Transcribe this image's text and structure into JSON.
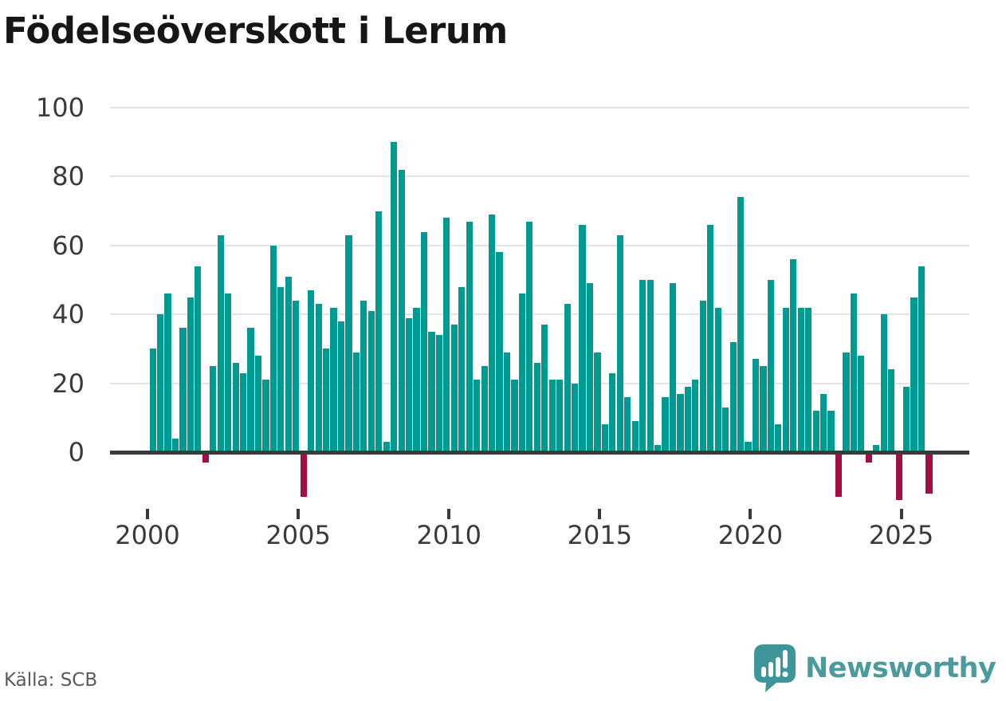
{
  "page": {
    "title": "Födelseöverskott i Lerum",
    "source": "Källa: SCB"
  },
  "logo": {
    "text": "Newsworthy",
    "icon": "newsworthy-speech-bubble-bar-chart-icon"
  },
  "colors": {
    "positive_bar": "#009a92",
    "negative_bar": "#a60d45",
    "axis": "#3a3a3a",
    "grid": "#e3e3e3",
    "title_text": "#161616",
    "tick_label": "#3a3a3a",
    "source_text": "#5a5a5a",
    "logo_teal": "#4a9a9e"
  },
  "chart_data": {
    "type": "bar",
    "title": "Födelseöverskott i Lerum",
    "xlabel": "",
    "ylabel": "",
    "yticks": [
      0,
      20,
      40,
      60,
      80,
      100
    ],
    "xticks": [
      2000,
      2005,
      2010,
      2015,
      2020,
      2025
    ],
    "ylim": [
      -16,
      100
    ],
    "grid": "horizontal",
    "legend": "none",
    "frequency": "quarterly",
    "years": [
      {
        "year": 2000,
        "quarters": [
          30,
          40,
          46,
          4
        ]
      },
      {
        "year": 2001,
        "quarters": [
          36,
          45,
          54,
          -3
        ]
      },
      {
        "year": 2002,
        "quarters": [
          25,
          63,
          46,
          26
        ]
      },
      {
        "year": 2003,
        "quarters": [
          23,
          36,
          28,
          21
        ]
      },
      {
        "year": 2004,
        "quarters": [
          60,
          48,
          51,
          44
        ]
      },
      {
        "year": 2005,
        "quarters": [
          -13,
          47,
          43,
          30
        ]
      },
      {
        "year": 2006,
        "quarters": [
          42,
          38,
          63,
          29
        ]
      },
      {
        "year": 2007,
        "quarters": [
          44,
          41,
          70,
          3
        ]
      },
      {
        "year": 2008,
        "quarters": [
          90,
          82,
          39,
          42
        ]
      },
      {
        "year": 2009,
        "quarters": [
          64,
          35,
          34,
          68
        ]
      },
      {
        "year": 2010,
        "quarters": [
          37,
          48,
          67,
          21
        ]
      },
      {
        "year": 2011,
        "quarters": [
          25,
          69,
          58,
          29
        ]
      },
      {
        "year": 2012,
        "quarters": [
          21,
          46,
          67,
          26
        ]
      },
      {
        "year": 2013,
        "quarters": [
          37,
          21,
          21,
          43
        ]
      },
      {
        "year": 2014,
        "quarters": [
          20,
          66,
          49,
          29
        ]
      },
      {
        "year": 2015,
        "quarters": [
          8,
          23,
          63,
          16
        ]
      },
      {
        "year": 2016,
        "quarters": [
          9,
          50,
          50,
          2
        ]
      },
      {
        "year": 2017,
        "quarters": [
          16,
          49,
          17,
          19
        ]
      },
      {
        "year": 2018,
        "quarters": [
          21,
          44,
          66,
          42
        ]
      },
      {
        "year": 2019,
        "quarters": [
          13,
          32,
          74,
          3
        ]
      },
      {
        "year": 2020,
        "quarters": [
          27,
          25,
          50,
          8
        ]
      },
      {
        "year": 2021,
        "quarters": [
          42,
          56,
          42,
          42
        ]
      },
      {
        "year": 2022,
        "quarters": [
          12,
          17,
          12,
          -13
        ]
      },
      {
        "year": 2023,
        "quarters": [
          29,
          46,
          28,
          -3
        ]
      },
      {
        "year": 2024,
        "quarters": [
          2,
          40,
          24,
          -14
        ]
      },
      {
        "year": 2025,
        "quarters": [
          19,
          45,
          54,
          -12
        ]
      }
    ]
  }
}
